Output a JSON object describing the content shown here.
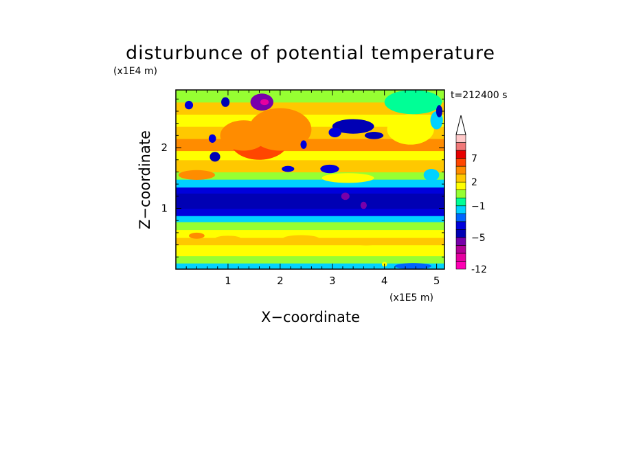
{
  "chart_data": {
    "type": "heatmap",
    "title": "disturbunce of potential temperature",
    "xlabel": "X−coordinate",
    "ylabel": "Z−coordinate",
    "x_unit": "(x1E5 m)",
    "y_unit": "(x1E4 m)",
    "time_label": "t=212400 s",
    "xlim": [
      0,
      5.15
    ],
    "ylim": [
      0,
      2.95
    ],
    "x_ticks": [
      1,
      2,
      3,
      4,
      5
    ],
    "y_ticks": [
      1,
      2
    ],
    "x_tick_labels": [
      "1",
      "2",
      "3",
      "4",
      "5"
    ],
    "y_tick_labels": [
      "1",
      "2"
    ],
    "colorbar": {
      "levels": [
        -12,
        -11,
        -9,
        -7,
        -5,
        -4,
        -3,
        -2,
        -1,
        0,
        1,
        2,
        3,
        5,
        7,
        9,
        11
      ],
      "colors": [
        "#ff00b4",
        "#e600a0",
        "#b40096",
        "#7800aa",
        "#0000b4",
        "#0000dc",
        "#0064ff",
        "#00d2ff",
        "#00ff96",
        "#96ff32",
        "#ffff00",
        "#ffc800",
        "#ff8c00",
        "#ff4600",
        "#e60000",
        "#f07878",
        "#ffc8c8"
      ],
      "tick_labels": [
        "-12",
        "−5",
        "−1",
        "2",
        "7"
      ],
      "tick_values": [
        -12,
        -5,
        -1,
        2,
        7
      ],
      "extend": "max"
    },
    "bands": [
      {
        "z0": 0.0,
        "z1": 0.1,
        "v": -1.5
      },
      {
        "z0": 0.1,
        "z1": 0.22,
        "v": 0.5
      },
      {
        "z0": 0.22,
        "z1": 0.4,
        "v": 1.5
      },
      {
        "z0": 0.4,
        "z1": 0.52,
        "v": 2.2
      },
      {
        "z0": 0.52,
        "z1": 0.65,
        "v": 1.2
      },
      {
        "z0": 0.65,
        "z1": 0.78,
        "v": 0.2
      },
      {
        "z0": 0.78,
        "z1": 0.88,
        "v": -1.3
      },
      {
        "z0": 0.88,
        "z1": 1.0,
        "v": -3.5
      },
      {
        "z0": 1.0,
        "z1": 1.25,
        "v": -4.5
      },
      {
        "z0": 1.25,
        "z1": 1.35,
        "v": -3.5
      },
      {
        "z0": 1.35,
        "z1": 1.48,
        "v": -1.3
      },
      {
        "z0": 1.48,
        "z1": 1.6,
        "v": 0.5
      },
      {
        "z0": 1.6,
        "z1": 1.8,
        "v": 2.2
      },
      {
        "z0": 1.8,
        "z1": 1.95,
        "v": 1.5
      },
      {
        "z0": 1.95,
        "z1": 2.15,
        "v": 3.2
      },
      {
        "z0": 2.15,
        "z1": 2.35,
        "v": 2.5
      },
      {
        "z0": 2.35,
        "z1": 2.55,
        "v": 1.5
      },
      {
        "z0": 2.55,
        "z1": 2.75,
        "v": 2.2
      },
      {
        "z0": 2.75,
        "z1": 2.95,
        "v": 0.5
      }
    ],
    "features": [
      {
        "x": 1.6,
        "z": 2.1,
        "rx": 0.55,
        "rz": 0.3,
        "v": 5.5
      },
      {
        "x": 1.3,
        "z": 2.2,
        "rx": 0.45,
        "rz": 0.25,
        "v": 3.5
      },
      {
        "x": 2.0,
        "z": 2.3,
        "rx": 0.6,
        "rz": 0.35,
        "v": 3.2
      },
      {
        "x": 1.65,
        "z": 2.75,
        "rx": 0.22,
        "rz": 0.14,
        "v": -5.5
      },
      {
        "x": 1.7,
        "z": 2.75,
        "rx": 0.08,
        "rz": 0.05,
        "v": -9.5
      },
      {
        "x": 0.95,
        "z": 2.75,
        "rx": 0.08,
        "rz": 0.08,
        "v": -4.5
      },
      {
        "x": 0.25,
        "z": 2.7,
        "rx": 0.08,
        "rz": 0.07,
        "v": -3.5
      },
      {
        "x": 0.75,
        "z": 1.85,
        "rx": 0.1,
        "rz": 0.08,
        "v": -4.5
      },
      {
        "x": 0.7,
        "z": 2.15,
        "rx": 0.07,
        "rz": 0.07,
        "v": -3.5
      },
      {
        "x": 2.15,
        "z": 1.65,
        "rx": 0.12,
        "rz": 0.05,
        "v": -3.5
      },
      {
        "x": 2.95,
        "z": 1.65,
        "rx": 0.18,
        "rz": 0.07,
        "v": -3.5
      },
      {
        "x": 3.4,
        "z": 2.35,
        "rx": 0.4,
        "rz": 0.12,
        "v": -4.5
      },
      {
        "x": 3.05,
        "z": 2.25,
        "rx": 0.12,
        "rz": 0.08,
        "v": -3.5
      },
      {
        "x": 3.8,
        "z": 2.2,
        "rx": 0.18,
        "rz": 0.06,
        "v": -4.5
      },
      {
        "x": 2.45,
        "z": 2.05,
        "rx": 0.06,
        "rz": 0.07,
        "v": -3.5
      },
      {
        "x": 4.5,
        "z": 2.3,
        "rx": 0.45,
        "rz": 0.25,
        "v": 1.5
      },
      {
        "x": 4.55,
        "z": 2.75,
        "rx": 0.55,
        "rz": 0.2,
        "v": -0.5
      },
      {
        "x": 5.0,
        "z": 2.45,
        "rx": 0.12,
        "rz": 0.15,
        "v": -1.5
      },
      {
        "x": 5.05,
        "z": 2.6,
        "rx": 0.06,
        "rz": 0.1,
        "v": -4.5
      },
      {
        "x": 4.9,
        "z": 1.55,
        "rx": 0.15,
        "rz": 0.1,
        "v": -1.5
      },
      {
        "x": 0.4,
        "z": 1.55,
        "rx": 0.35,
        "rz": 0.08,
        "v": 3.5
      },
      {
        "x": 3.3,
        "z": 1.5,
        "rx": 0.5,
        "rz": 0.08,
        "v": 1.5
      },
      {
        "x": 3.25,
        "z": 1.2,
        "rx": 0.08,
        "rz": 0.06,
        "v": -5.5
      },
      {
        "x": 3.6,
        "z": 1.05,
        "rx": 0.06,
        "rz": 0.06,
        "v": -5.5
      },
      {
        "x": 0.4,
        "z": 0.55,
        "rx": 0.15,
        "rz": 0.05,
        "v": 3.5
      },
      {
        "x": 1.0,
        "z": 0.5,
        "rx": 0.25,
        "rz": 0.05,
        "v": 2.5
      },
      {
        "x": 2.4,
        "z": 0.5,
        "rx": 0.35,
        "rz": 0.06,
        "v": 2.5
      },
      {
        "x": 3.65,
        "z": 0.45,
        "rx": 0.25,
        "rz": 0.06,
        "v": 2.5
      },
      {
        "x": 4.55,
        "z": 0.05,
        "rx": 0.35,
        "rz": 0.05,
        "v": -2.5
      },
      {
        "x": 4.0,
        "z": 0.08,
        "rx": 0.05,
        "rz": 0.04,
        "v": 1.5
      }
    ]
  }
}
